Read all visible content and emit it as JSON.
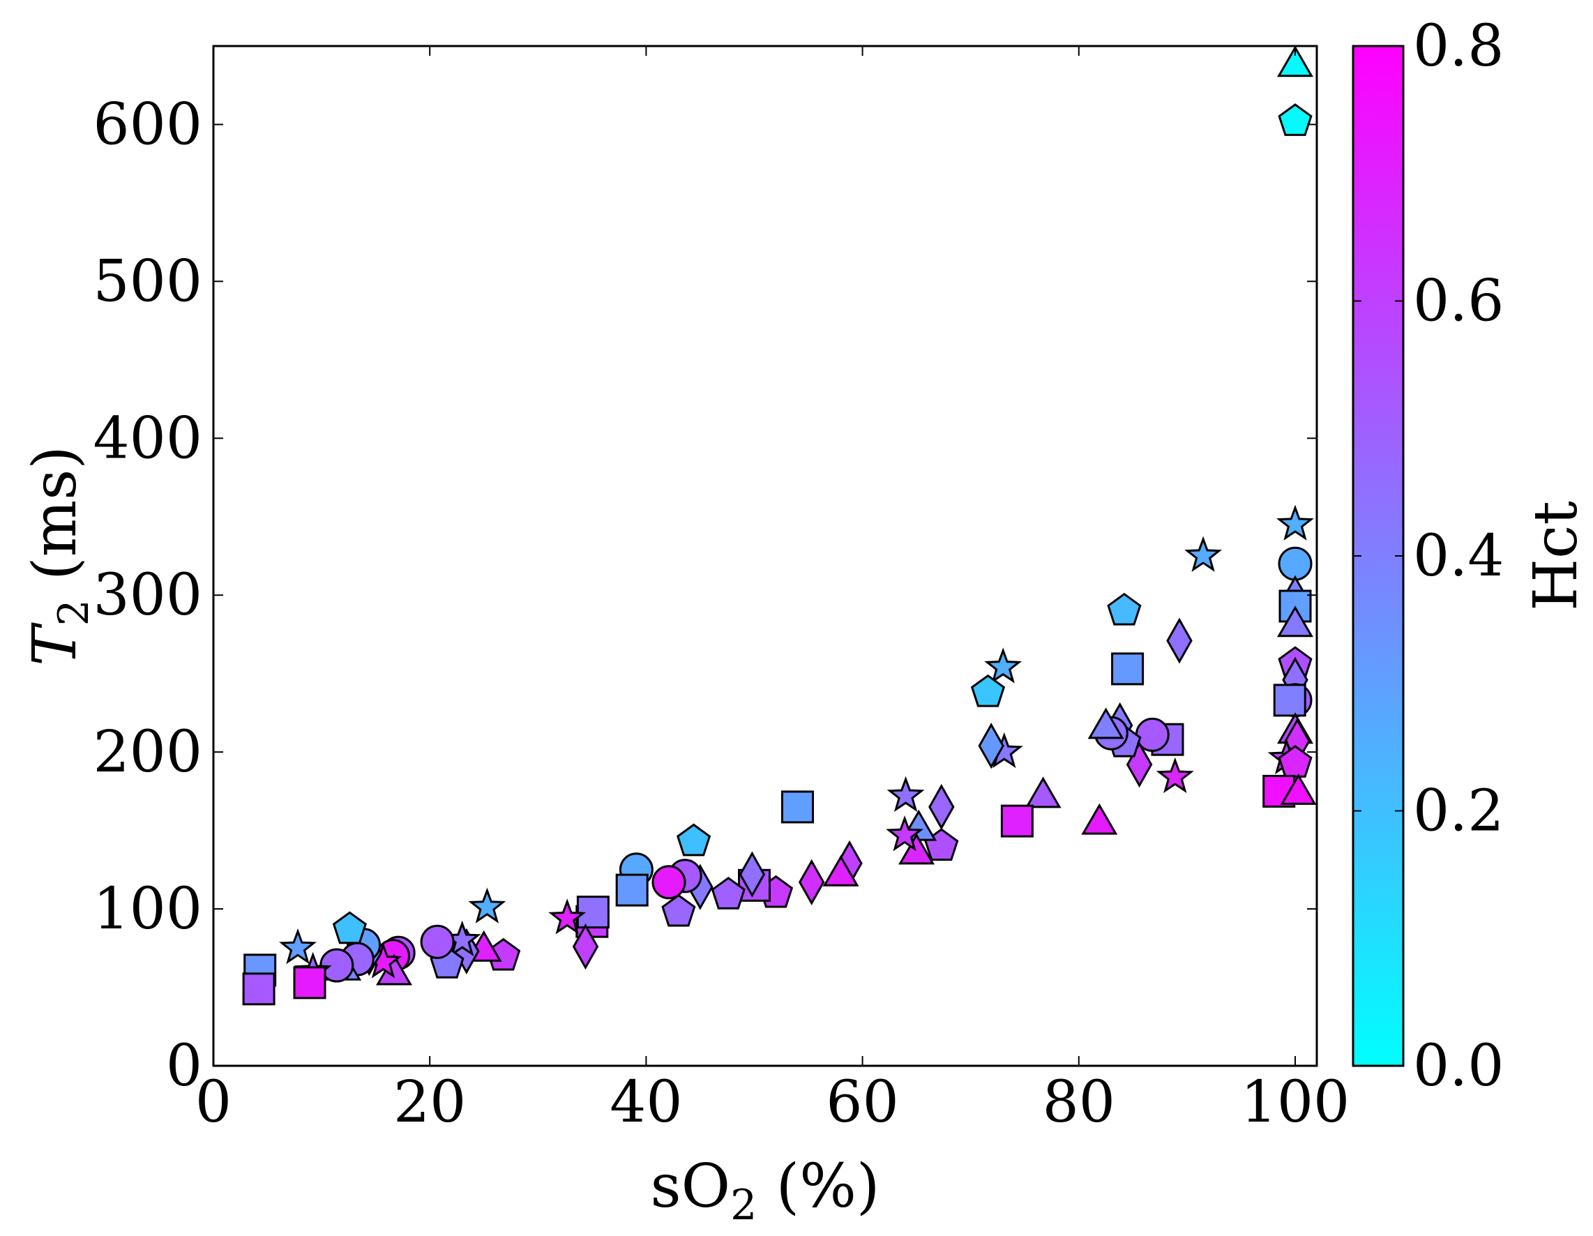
{
  "chart_data": {
    "type": "scatter",
    "title": "",
    "xlabel": {
      "main": "sO",
      "sub": "2",
      "tail": " (%)"
    },
    "ylabel": {
      "main": "T",
      "sub": "2",
      "tail": " (ms)"
    },
    "xlim": [
      0,
      102
    ],
    "ylim": [
      0,
      650
    ],
    "xticks": [
      0,
      20,
      40,
      60,
      80,
      100
    ],
    "yticks": [
      0,
      100,
      200,
      300,
      400,
      500,
      600
    ],
    "grid": false,
    "colorbar": {
      "label": "Hct",
      "range": [
        0.0,
        0.8
      ],
      "ticks": [
        "0.0",
        "0.2",
        "0.4",
        "0.6",
        "0.8"
      ],
      "colormap": "cool",
      "color_low": "#00ffff",
      "color_high": "#ff00ff"
    },
    "points": [
      {
        "x": 100,
        "y": 637,
        "hct": 0.02,
        "marker": "triangle"
      },
      {
        "x": 100,
        "y": 602,
        "hct": 0.02,
        "marker": "pentagon"
      },
      {
        "x": 100,
        "y": 345,
        "hct": 0.25,
        "marker": "star"
      },
      {
        "x": 100,
        "y": 320,
        "hct": 0.27,
        "marker": "circle"
      },
      {
        "x": 100,
        "y": 298,
        "hct": 0.4,
        "marker": "diamond"
      },
      {
        "x": 100,
        "y": 293,
        "hct": 0.3,
        "marker": "square"
      },
      {
        "x": 100,
        "y": 280,
        "hct": 0.42,
        "marker": "triangle"
      },
      {
        "x": 100,
        "y": 256,
        "hct": 0.55,
        "marker": "pentagon"
      },
      {
        "x": 100,
        "y": 246,
        "hct": 0.45,
        "marker": "diamond"
      },
      {
        "x": 100,
        "y": 233,
        "hct": 0.5,
        "marker": "circle"
      },
      {
        "x": 99.5,
        "y": 233,
        "hct": 0.4,
        "marker": "square"
      },
      {
        "x": 100,
        "y": 212,
        "hct": 0.58,
        "marker": "triangle"
      },
      {
        "x": 100.2,
        "y": 207,
        "hct": 0.65,
        "marker": "diamond"
      },
      {
        "x": 99.2,
        "y": 196,
        "hct": 0.62,
        "marker": "star"
      },
      {
        "x": 100,
        "y": 193,
        "hct": 0.68,
        "marker": "pentagon"
      },
      {
        "x": 98.5,
        "y": 175,
        "hct": 0.75,
        "marker": "square"
      },
      {
        "x": 100.3,
        "y": 173,
        "hct": 0.75,
        "marker": "triangle"
      },
      {
        "x": 91.5,
        "y": 325,
        "hct": 0.26,
        "marker": "star"
      },
      {
        "x": 89.3,
        "y": 271,
        "hct": 0.45,
        "marker": "diamond"
      },
      {
        "x": 88.9,
        "y": 184,
        "hct": 0.68,
        "marker": "star"
      },
      {
        "x": 88.2,
        "y": 208,
        "hct": 0.48,
        "marker": "square"
      },
      {
        "x": 86.8,
        "y": 211,
        "hct": 0.52,
        "marker": "circle"
      },
      {
        "x": 85.6,
        "y": 192,
        "hct": 0.62,
        "marker": "diamond"
      },
      {
        "x": 84.2,
        "y": 290,
        "hct": 0.22,
        "marker": "pentagon"
      },
      {
        "x": 84.5,
        "y": 253,
        "hct": 0.32,
        "marker": "square"
      },
      {
        "x": 83.8,
        "y": 217,
        "hct": 0.42,
        "marker": "diamond"
      },
      {
        "x": 84.2,
        "y": 206,
        "hct": 0.45,
        "marker": "pentagon"
      },
      {
        "x": 83.0,
        "y": 212,
        "hct": 0.45,
        "marker": "circle"
      },
      {
        "x": 82.5,
        "y": 215,
        "hct": 0.4,
        "marker": "triangle"
      },
      {
        "x": 81.9,
        "y": 154,
        "hct": 0.72,
        "marker": "triangle"
      },
      {
        "x": 76.7,
        "y": 171,
        "hct": 0.52,
        "marker": "triangle"
      },
      {
        "x": 74.3,
        "y": 156,
        "hct": 0.7,
        "marker": "square"
      },
      {
        "x": 73.0,
        "y": 254,
        "hct": 0.25,
        "marker": "star"
      },
      {
        "x": 73.1,
        "y": 200,
        "hct": 0.42,
        "marker": "star"
      },
      {
        "x": 71.9,
        "y": 204,
        "hct": 0.32,
        "marker": "diamond"
      },
      {
        "x": 71.6,
        "y": 238,
        "hct": 0.18,
        "marker": "pentagon"
      },
      {
        "x": 67.3,
        "y": 165,
        "hct": 0.48,
        "marker": "diamond"
      },
      {
        "x": 67.3,
        "y": 140,
        "hct": 0.55,
        "marker": "pentagon"
      },
      {
        "x": 65.2,
        "y": 150,
        "hct": 0.35,
        "marker": "triangle"
      },
      {
        "x": 65.0,
        "y": 135,
        "hct": 0.68,
        "marker": "triangle"
      },
      {
        "x": 64.0,
        "y": 172,
        "hct": 0.45,
        "marker": "star"
      },
      {
        "x": 63.9,
        "y": 147,
        "hct": 0.62,
        "marker": "star"
      },
      {
        "x": 58.8,
        "y": 129,
        "hct": 0.6,
        "marker": "diamond"
      },
      {
        "x": 58.0,
        "y": 121,
        "hct": 0.7,
        "marker": "triangle"
      },
      {
        "x": 55.3,
        "y": 117,
        "hct": 0.65,
        "marker": "diamond"
      },
      {
        "x": 54.0,
        "y": 165,
        "hct": 0.3,
        "marker": "square"
      },
      {
        "x": 52.0,
        "y": 110,
        "hct": 0.62,
        "marker": "pentagon"
      },
      {
        "x": 50.0,
        "y": 115,
        "hct": 0.55,
        "marker": "square"
      },
      {
        "x": 49.8,
        "y": 122,
        "hct": 0.45,
        "marker": "diamond"
      },
      {
        "x": 47.6,
        "y": 109,
        "hct": 0.5,
        "marker": "pentagon"
      },
      {
        "x": 45.0,
        "y": 114,
        "hct": 0.42,
        "marker": "diamond"
      },
      {
        "x": 44.4,
        "y": 143,
        "hct": 0.2,
        "marker": "pentagon"
      },
      {
        "x": 43.6,
        "y": 121,
        "hct": 0.52,
        "marker": "circle"
      },
      {
        "x": 43.0,
        "y": 98,
        "hct": 0.48,
        "marker": "pentagon"
      },
      {
        "x": 42.1,
        "y": 117,
        "hct": 0.72,
        "marker": "circle"
      },
      {
        "x": 39.1,
        "y": 125,
        "hct": 0.27,
        "marker": "circle"
      },
      {
        "x": 38.7,
        "y": 112,
        "hct": 0.32,
        "marker": "square"
      },
      {
        "x": 35.0,
        "y": 92,
        "hct": 0.62,
        "marker": "square"
      },
      {
        "x": 35.1,
        "y": 98,
        "hct": 0.45,
        "marker": "square"
      },
      {
        "x": 34.4,
        "y": 76,
        "hct": 0.6,
        "marker": "diamond"
      },
      {
        "x": 32.7,
        "y": 94,
        "hct": 0.7,
        "marker": "star"
      },
      {
        "x": 26.8,
        "y": 70,
        "hct": 0.62,
        "marker": "pentagon"
      },
      {
        "x": 25.3,
        "y": 101,
        "hct": 0.25,
        "marker": "star"
      },
      {
        "x": 25.0,
        "y": 73,
        "hct": 0.7,
        "marker": "triangle"
      },
      {
        "x": 23.4,
        "y": 73,
        "hct": 0.45,
        "marker": "diamond"
      },
      {
        "x": 23.0,
        "y": 80,
        "hct": 0.45,
        "marker": "star"
      },
      {
        "x": 21.6,
        "y": 65,
        "hct": 0.42,
        "marker": "pentagon"
      },
      {
        "x": 20.7,
        "y": 79,
        "hct": 0.52,
        "marker": "circle"
      },
      {
        "x": 17.1,
        "y": 72,
        "hct": 0.55,
        "marker": "circle"
      },
      {
        "x": 16.6,
        "y": 70,
        "hct": 0.72,
        "marker": "circle"
      },
      {
        "x": 16.7,
        "y": 58,
        "hct": 0.6,
        "marker": "triangle"
      },
      {
        "x": 15.7,
        "y": 66,
        "hct": 0.72,
        "marker": "star"
      },
      {
        "x": 14.4,
        "y": 72,
        "hct": 0.35,
        "marker": "diamond"
      },
      {
        "x": 13.9,
        "y": 77,
        "hct": 0.3,
        "marker": "circle"
      },
      {
        "x": 13.3,
        "y": 68,
        "hct": 0.48,
        "marker": "circle"
      },
      {
        "x": 12.6,
        "y": 87,
        "hct": 0.2,
        "marker": "pentagon"
      },
      {
        "x": 12.0,
        "y": 61,
        "hct": 0.38,
        "marker": "triangle"
      },
      {
        "x": 11.4,
        "y": 64,
        "hct": 0.5,
        "marker": "circle"
      },
      {
        "x": 9.2,
        "y": 60,
        "hct": 0.5,
        "marker": "star"
      },
      {
        "x": 8.9,
        "y": 53,
        "hct": 0.72,
        "marker": "square"
      },
      {
        "x": 7.8,
        "y": 75,
        "hct": 0.3,
        "marker": "star"
      },
      {
        "x": 4.3,
        "y": 61,
        "hct": 0.33,
        "marker": "square"
      },
      {
        "x": 4.2,
        "y": 49,
        "hct": 0.52,
        "marker": "square"
      }
    ]
  }
}
